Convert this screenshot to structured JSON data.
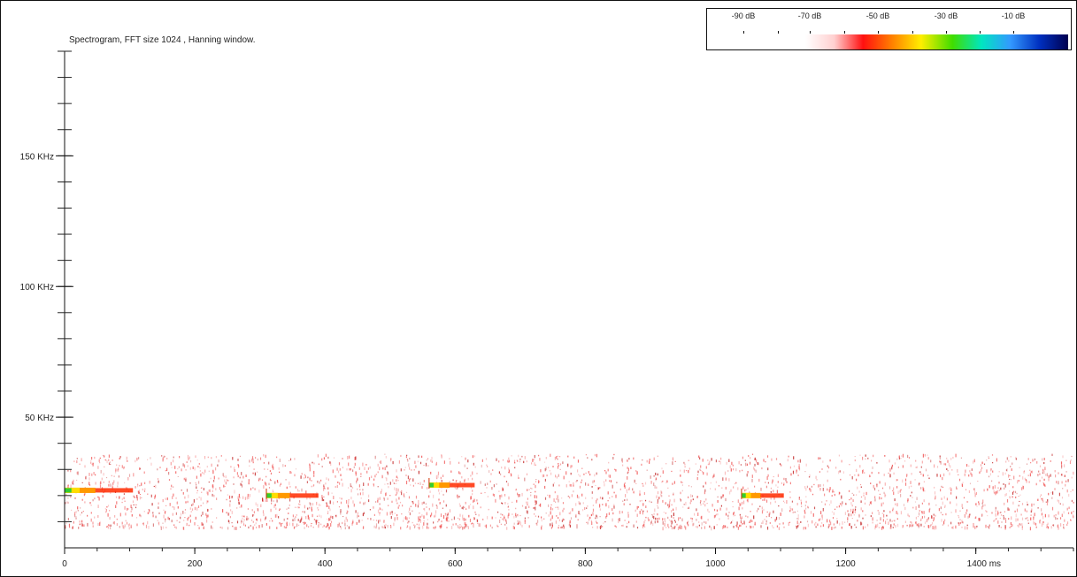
{
  "chart_data": {
    "type": "heatmap",
    "title": "Spectrogram, FFT size 1024 , Hanning window.",
    "x_unit": "ms",
    "y_unit": "kHz",
    "xlim": [
      0,
      1550
    ],
    "ylim": [
      0,
      190
    ],
    "x_ticks": [
      0,
      200,
      400,
      600,
      800,
      1000,
      1200,
      1400
    ],
    "x_tick_labels": [
      "0",
      "200",
      "400",
      "600",
      "800",
      "1000",
      "1200",
      "1400 ms"
    ],
    "y_ticks": [
      50,
      100,
      150
    ],
    "y_tick_labels": [
      "50 KHz",
      "100 KHz",
      "150 KHz"
    ],
    "color_scale": {
      "labels": [
        "-90 dB",
        "-70 dB",
        "-50 dB",
        "-30 dB",
        "-10 dB"
      ],
      "colors": [
        "#ffffff",
        "#ffd0d0",
        "#ff1010",
        "#ff8000",
        "#ffee00",
        "#40dd00",
        "#00e6c0",
        "#3399ff",
        "#0030c0",
        "#000050"
      ]
    },
    "noise_band_khz": [
      8,
      36
    ],
    "calls": [
      {
        "start_ms": 0,
        "end_ms": 105,
        "freq_khz": 22
      },
      {
        "start_ms": 310,
        "end_ms": 390,
        "freq_khz": 20
      },
      {
        "start_ms": 560,
        "end_ms": 630,
        "freq_khz": 24
      },
      {
        "start_ms": 1040,
        "end_ms": 1105,
        "freq_khz": 20
      }
    ]
  }
}
